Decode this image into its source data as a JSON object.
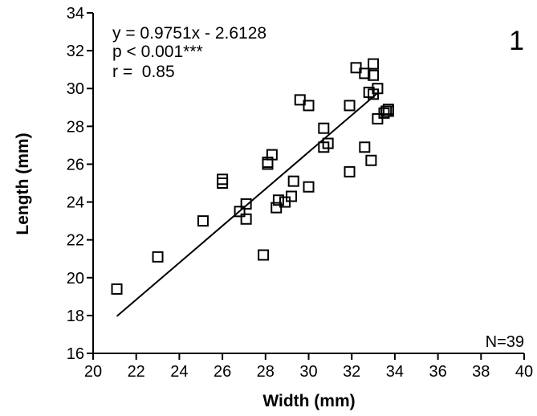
{
  "chart_data": {
    "type": "scatter",
    "xlabel": "Width (mm)",
    "ylabel": "Length (mm)",
    "xlim": [
      20,
      40
    ],
    "ylim": [
      16,
      34
    ],
    "x_ticks": [
      20,
      22,
      24,
      26,
      28,
      30,
      32,
      34,
      36,
      38,
      40
    ],
    "y_ticks": [
      16,
      18,
      20,
      22,
      24,
      26,
      28,
      30,
      32,
      34
    ],
    "annotations": [
      "y = 0.9751x - 2.6128",
      "p < 0.001***",
      "r =  0.85"
    ],
    "panel_label": "1",
    "n_label": "N=39",
    "marker": "open-square",
    "color": "#000000",
    "points": [
      {
        "x": 21.1,
        "y": 19.4
      },
      {
        "x": 23.0,
        "y": 21.1
      },
      {
        "x": 25.1,
        "y": 23.0
      },
      {
        "x": 26.0,
        "y": 25.2
      },
      {
        "x": 26.0,
        "y": 25.0
      },
      {
        "x": 26.8,
        "y": 23.5
      },
      {
        "x": 27.1,
        "y": 23.9
      },
      {
        "x": 27.1,
        "y": 23.1
      },
      {
        "x": 27.9,
        "y": 21.2
      },
      {
        "x": 28.1,
        "y": 26.1
      },
      {
        "x": 28.1,
        "y": 26.0
      },
      {
        "x": 28.3,
        "y": 26.5
      },
      {
        "x": 28.5,
        "y": 23.7
      },
      {
        "x": 28.6,
        "y": 24.1
      },
      {
        "x": 28.9,
        "y": 24.0
      },
      {
        "x": 29.2,
        "y": 24.3
      },
      {
        "x": 29.3,
        "y": 25.1
      },
      {
        "x": 29.6,
        "y": 29.4
      },
      {
        "x": 30.0,
        "y": 29.1
      },
      {
        "x": 30.0,
        "y": 24.8
      },
      {
        "x": 30.7,
        "y": 27.9
      },
      {
        "x": 30.7,
        "y": 26.9
      },
      {
        "x": 30.9,
        "y": 27.1
      },
      {
        "x": 31.9,
        "y": 29.1
      },
      {
        "x": 31.9,
        "y": 25.6
      },
      {
        "x": 32.2,
        "y": 31.1
      },
      {
        "x": 32.6,
        "y": 30.8
      },
      {
        "x": 32.6,
        "y": 26.9
      },
      {
        "x": 32.8,
        "y": 29.8
      },
      {
        "x": 32.9,
        "y": 26.2
      },
      {
        "x": 33.0,
        "y": 31.3
      },
      {
        "x": 33.0,
        "y": 30.7
      },
      {
        "x": 33.0,
        "y": 29.7
      },
      {
        "x": 33.2,
        "y": 30.0
      },
      {
        "x": 33.2,
        "y": 28.4
      },
      {
        "x": 33.5,
        "y": 28.7
      },
      {
        "x": 33.6,
        "y": 28.8
      },
      {
        "x": 33.7,
        "y": 28.9
      },
      {
        "x": 33.7,
        "y": 28.8
      }
    ],
    "regression": {
      "slope": 0.9751,
      "intercept": -2.6128,
      "x_range": [
        21.1,
        33.2
      ]
    }
  }
}
